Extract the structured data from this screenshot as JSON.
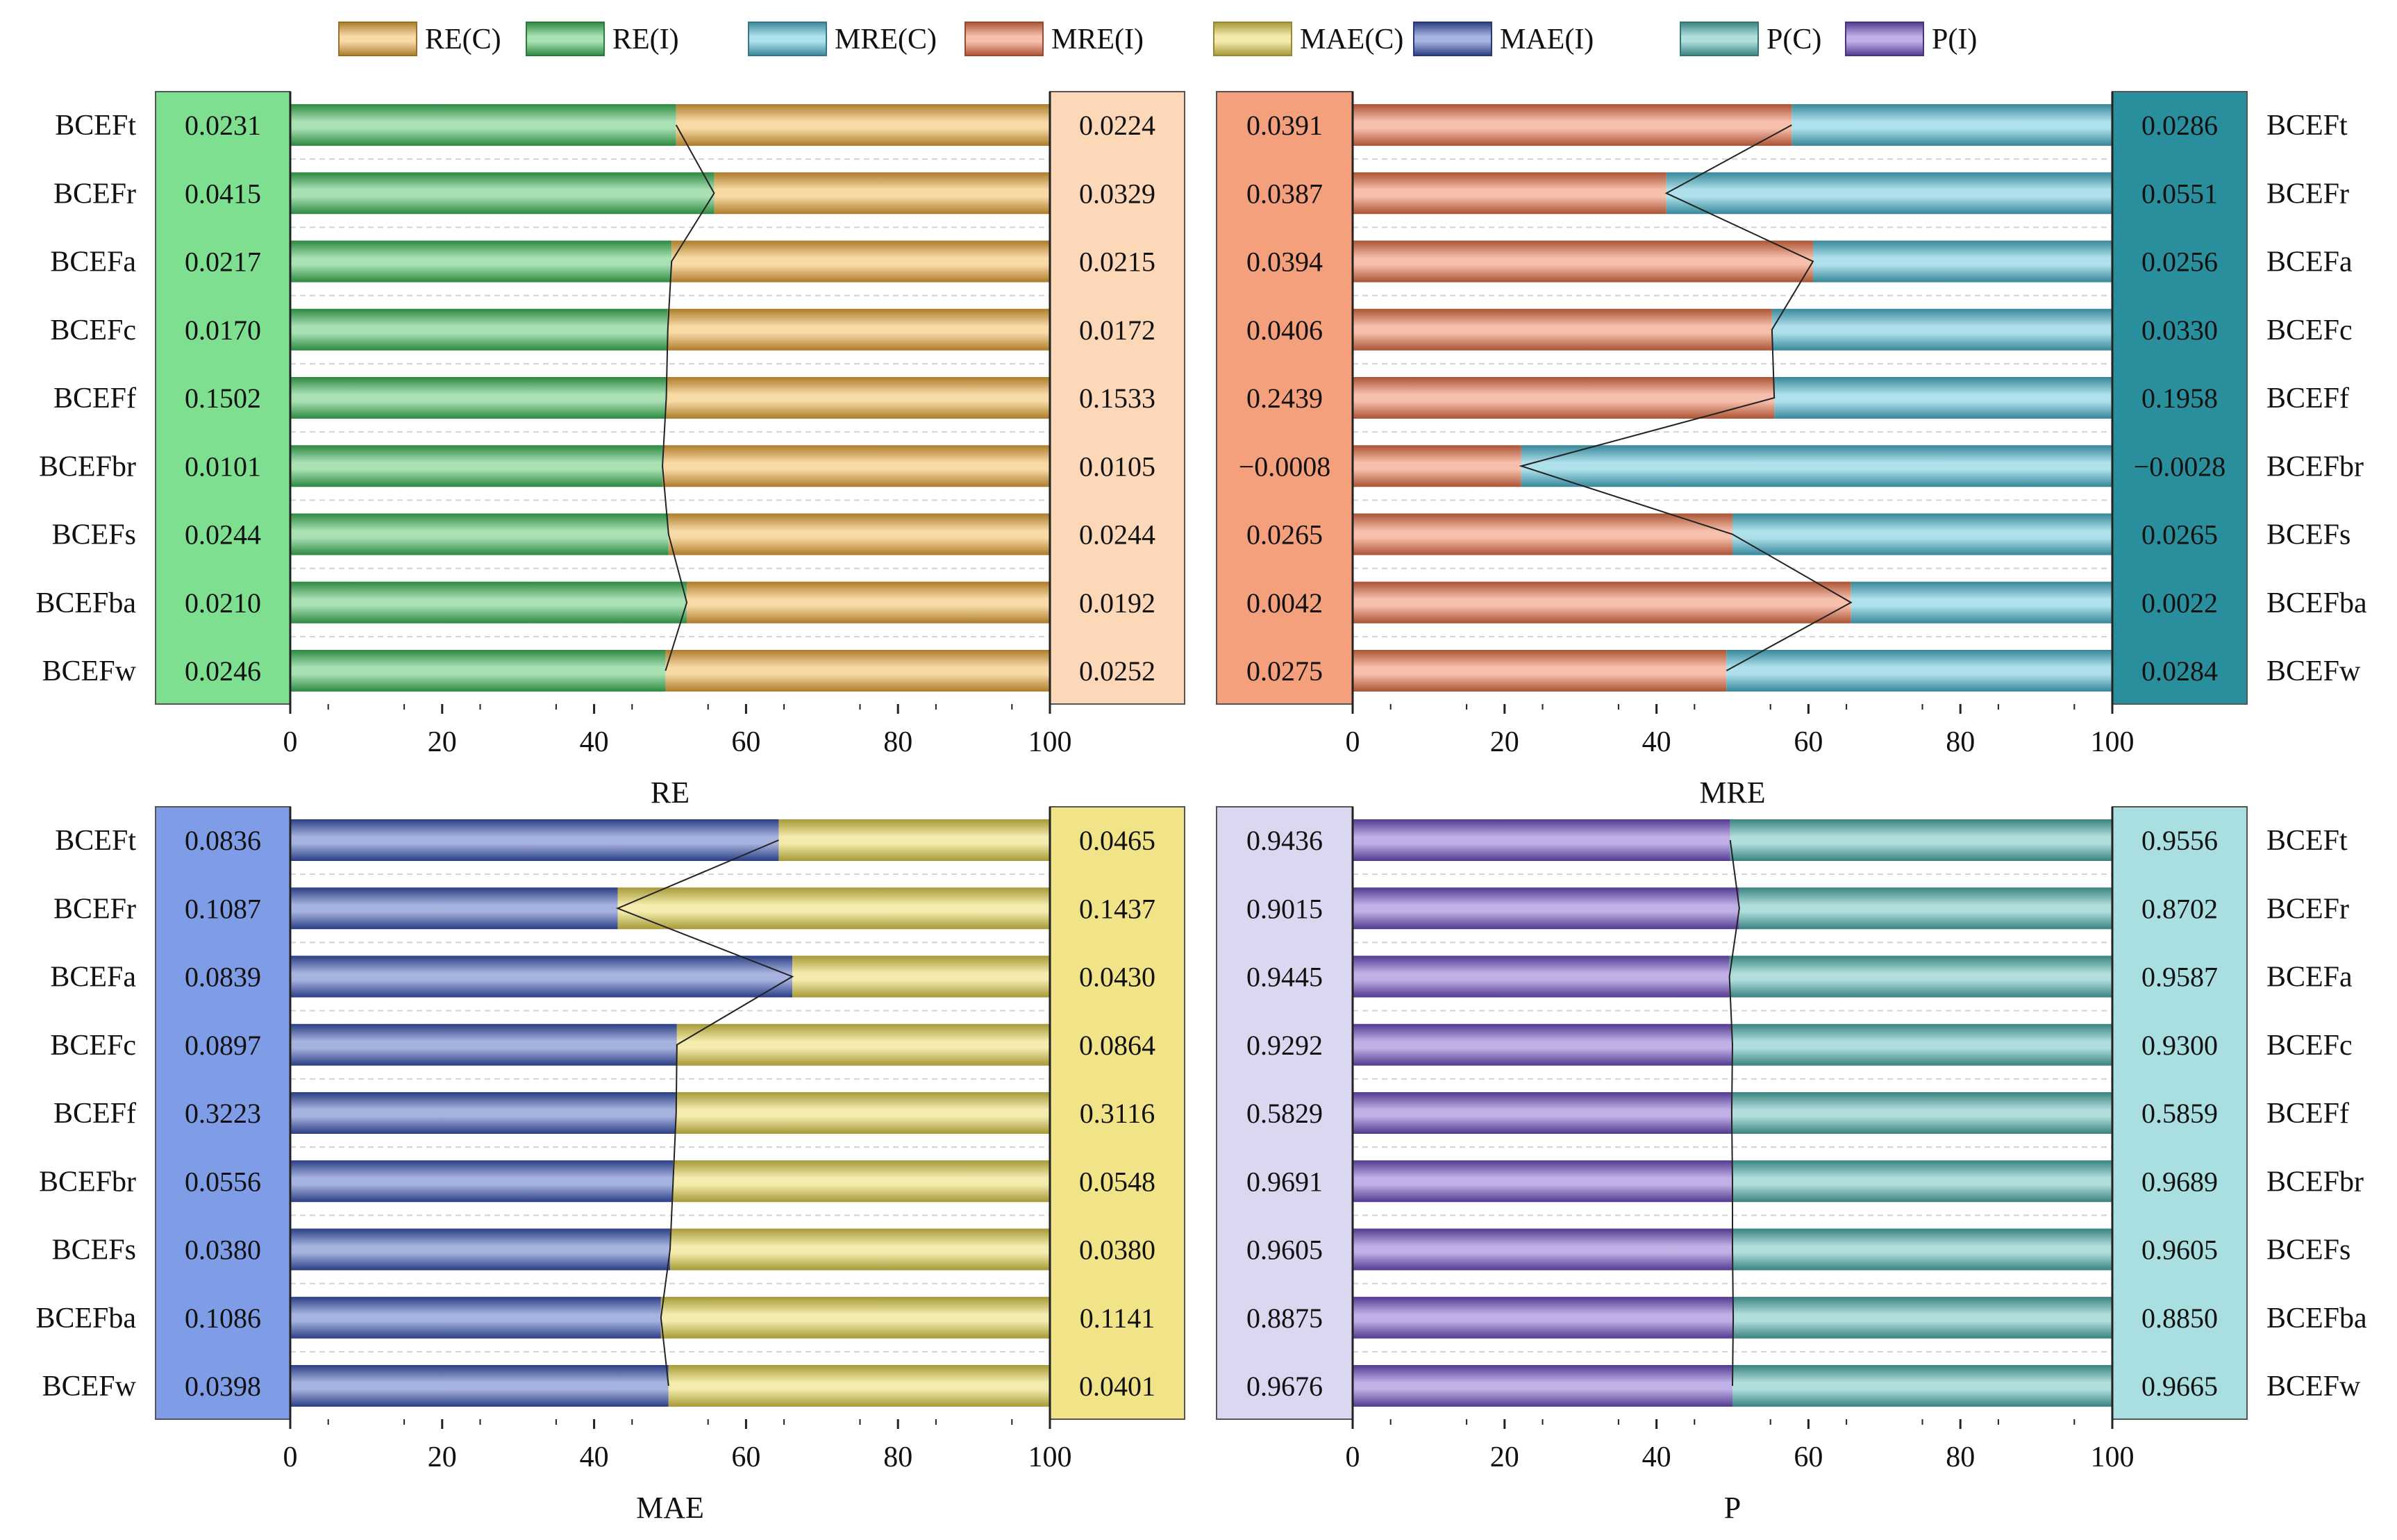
{
  "legend": [
    {
      "label": "RE(C)",
      "color": "#f0ac3c"
    },
    {
      "label": "RE(I)",
      "color": "#3fbd5a"
    },
    {
      "label": "MRE(C)",
      "color": "#4dbcd4"
    },
    {
      "label": "MRE(I)",
      "color": "#ee7348"
    },
    {
      "label": "MAE(C)",
      "color": "#e6d44c"
    },
    {
      "label": "MAE(I)",
      "color": "#3b56b8"
    },
    {
      "label": "P(C)",
      "color": "#4fb6b2"
    },
    {
      "label": "P(I)",
      "color": "#7250c8"
    }
  ],
  "chart_data": [
    {
      "type": "bar",
      "orientation": "horizontal-stacked-percent",
      "title": "",
      "xlabel": "RE",
      "ylabel": "",
      "xlim": [
        0,
        100
      ],
      "xticks": [
        "0",
        "20",
        "40",
        "60",
        "80",
        "100"
      ],
      "categories": [
        "BCEFt",
        "BCEFr",
        "BCEFa",
        "BCEFc",
        "BCEFf",
        "BCEFbr",
        "BCEFs",
        "BCEFba",
        "BCEFw"
      ],
      "category_side": "left",
      "series": [
        {
          "name": "RE(I)",
          "color": "#3fbd5a",
          "percent": [
            50.8,
            55.8,
            50.2,
            49.7,
            49.5,
            49.0,
            49.8,
            52.2,
            49.4
          ],
          "labels": [
            "0.0231",
            "0.0415",
            "0.0217",
            "0.0170",
            "0.1502",
            "0.0101",
            "0.0244",
            "0.0210",
            "0.0246"
          ],
          "panel_bg": "#7fdf90"
        },
        {
          "name": "RE(C)",
          "color": "#f0ac3c",
          "percent": [
            49.2,
            44.2,
            49.8,
            50.3,
            50.5,
            51.0,
            50.2,
            47.8,
            50.6
          ],
          "labels": [
            "0.0224",
            "0.0329",
            "0.0215",
            "0.0172",
            "0.1533",
            "0.0105",
            "0.0244",
            "0.0192",
            "0.0252"
          ],
          "panel_bg": "#fcd8b8"
        }
      ]
    },
    {
      "type": "bar",
      "orientation": "horizontal-stacked-percent",
      "title": "",
      "xlabel": "MRE",
      "ylabel": "",
      "xlim": [
        0,
        100
      ],
      "xticks": [
        "0",
        "20",
        "40",
        "60",
        "80",
        "100"
      ],
      "categories": [
        "BCEFt",
        "BCEFr",
        "BCEFa",
        "BCEFc",
        "BCEFf",
        "BCEFbr",
        "BCEFs",
        "BCEFba",
        "BCEFw"
      ],
      "category_side": "right",
      "series": [
        {
          "name": "MRE(I)",
          "color": "#ee7348",
          "percent": [
            57.8,
            41.3,
            60.6,
            55.2,
            55.5,
            22.2,
            50.0,
            65.6,
            49.2
          ],
          "labels": [
            "0.0391",
            "0.0387",
            "0.0394",
            "0.0406",
            "0.2439",
            "−0.0008",
            "0.0265",
            "0.0042",
            "0.0275"
          ],
          "panel_bg": "#f5a07c"
        },
        {
          "name": "MRE(C)",
          "color": "#4dbcd4",
          "percent": [
            42.2,
            58.7,
            39.4,
            44.8,
            44.5,
            77.8,
            50.0,
            34.4,
            50.8
          ],
          "labels": [
            "0.0286",
            "0.0551",
            "0.0256",
            "0.0330",
            "0.1958",
            "−0.0028",
            "0.0265",
            "0.0022",
            "0.0284"
          ],
          "panel_bg": "#2a8f9c"
        }
      ]
    },
    {
      "type": "bar",
      "orientation": "horizontal-stacked-percent",
      "title": "",
      "xlabel": "MAE",
      "ylabel": "",
      "xlim": [
        0,
        100
      ],
      "xticks": [
        "0",
        "20",
        "40",
        "60",
        "80",
        "100"
      ],
      "categories": [
        "BCEFt",
        "BCEFr",
        "BCEFa",
        "BCEFc",
        "BCEFf",
        "BCEFbr",
        "BCEFs",
        "BCEFba",
        "BCEFw"
      ],
      "category_side": "left",
      "series": [
        {
          "name": "MAE(I)",
          "color": "#3b56b8",
          "percent": [
            64.3,
            43.1,
            66.1,
            50.9,
            50.8,
            50.4,
            50.0,
            48.8,
            49.8
          ],
          "labels": [
            "0.0836",
            "0.1087",
            "0.0839",
            "0.0897",
            "0.3223",
            "0.0556",
            "0.0380",
            "0.1086",
            "0.0398"
          ],
          "panel_bg": "#7f9ce6"
        },
        {
          "name": "MAE(C)",
          "color": "#e6d44c",
          "percent": [
            35.7,
            56.9,
            33.9,
            49.1,
            49.2,
            49.6,
            50.0,
            51.2,
            50.2
          ],
          "labels": [
            "0.0465",
            "0.1437",
            "0.0430",
            "0.0864",
            "0.3116",
            "0.0548",
            "0.0380",
            "0.1141",
            "0.0401"
          ],
          "panel_bg": "#f1e488"
        }
      ]
    },
    {
      "type": "bar",
      "orientation": "horizontal-stacked-percent",
      "title": "",
      "xlabel": "P",
      "ylabel": "",
      "xlim": [
        0,
        100
      ],
      "xticks": [
        "0",
        "20",
        "40",
        "60",
        "80",
        "100"
      ],
      "categories": [
        "BCEFt",
        "BCEFr",
        "BCEFa",
        "BCEFc",
        "BCEFf",
        "BCEFbr",
        "BCEFs",
        "BCEFba",
        "BCEFw"
      ],
      "category_side": "right",
      "series": [
        {
          "name": "P(I)",
          "color": "#7250c8",
          "percent": [
            49.7,
            50.9,
            49.6,
            50.0,
            49.9,
            50.0,
            50.0,
            50.1,
            50.0
          ],
          "labels": [
            "0.9436",
            "0.9015",
            "0.9445",
            "0.9292",
            "0.5829",
            "0.9691",
            "0.9605",
            "0.8875",
            "0.9676"
          ],
          "panel_bg": "#d9d8f0"
        },
        {
          "name": "P(C)",
          "color": "#4fb6b2",
          "percent": [
            50.3,
            49.1,
            50.4,
            50.0,
            50.1,
            50.0,
            50.0,
            49.9,
            50.0
          ],
          "labels": [
            "0.9556",
            "0.8702",
            "0.9587",
            "0.9300",
            "0.5859",
            "0.9689",
            "0.9605",
            "0.8850",
            "0.9665"
          ],
          "panel_bg": "#a9dfe0"
        }
      ]
    }
  ]
}
